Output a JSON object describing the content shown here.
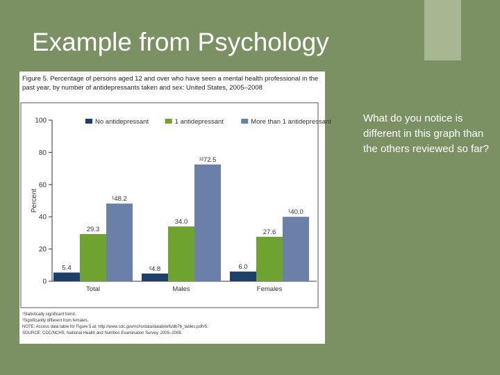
{
  "slide": {
    "title": "Example from Psychology",
    "question": "What do you notice is different in this graph than the others reviewed so far?"
  },
  "figure": {
    "caption": "Figure 5. Percentage of persons aged 12 and over who have seen a mental health professional in the past year, by number of antidepressants taken and sex: United States, 2005–2008",
    "notes": [
      "¹Statistically significant trend.",
      "²Significantly different from females.",
      "NOTE: Access data table for Figure 5 at: http://www.cdc.gov/nchs/data/databriefs/db76_tables.pdf#5.",
      "SOURCE: CDC/NCHS, National Health and Nutrition Examination Survey, 2005–2008."
    ]
  },
  "colors": {
    "background": "#7b9163",
    "corner_block": "#a6b791",
    "series": [
      "#1f3f6b",
      "#6fa32f",
      "#6b80a8"
    ]
  },
  "chart_data": {
    "type": "bar",
    "title": "",
    "xlabel": "",
    "ylabel": "Percent",
    "categories": [
      "Total",
      "Males",
      "Females"
    ],
    "ylim": [
      0,
      100
    ],
    "yticks": [
      0,
      20,
      40,
      60,
      80,
      100
    ],
    "grid": false,
    "legend_position": "top",
    "series": [
      {
        "name": "No antidepressant",
        "values": [
          5.4,
          4.8,
          6.0
        ],
        "labels": [
          "5.4",
          "²4.8",
          "6.0"
        ]
      },
      {
        "name": "1 antidepressant",
        "values": [
          29.3,
          34.0,
          27.6
        ],
        "labels": [
          "29.3",
          "34.0",
          "27.6"
        ]
      },
      {
        "name": "More than 1 antidepressant",
        "values": [
          48.2,
          72.5,
          40.0
        ],
        "labels": [
          "¹48.2",
          "¹²72.5",
          "¹40.0"
        ]
      }
    ]
  }
}
